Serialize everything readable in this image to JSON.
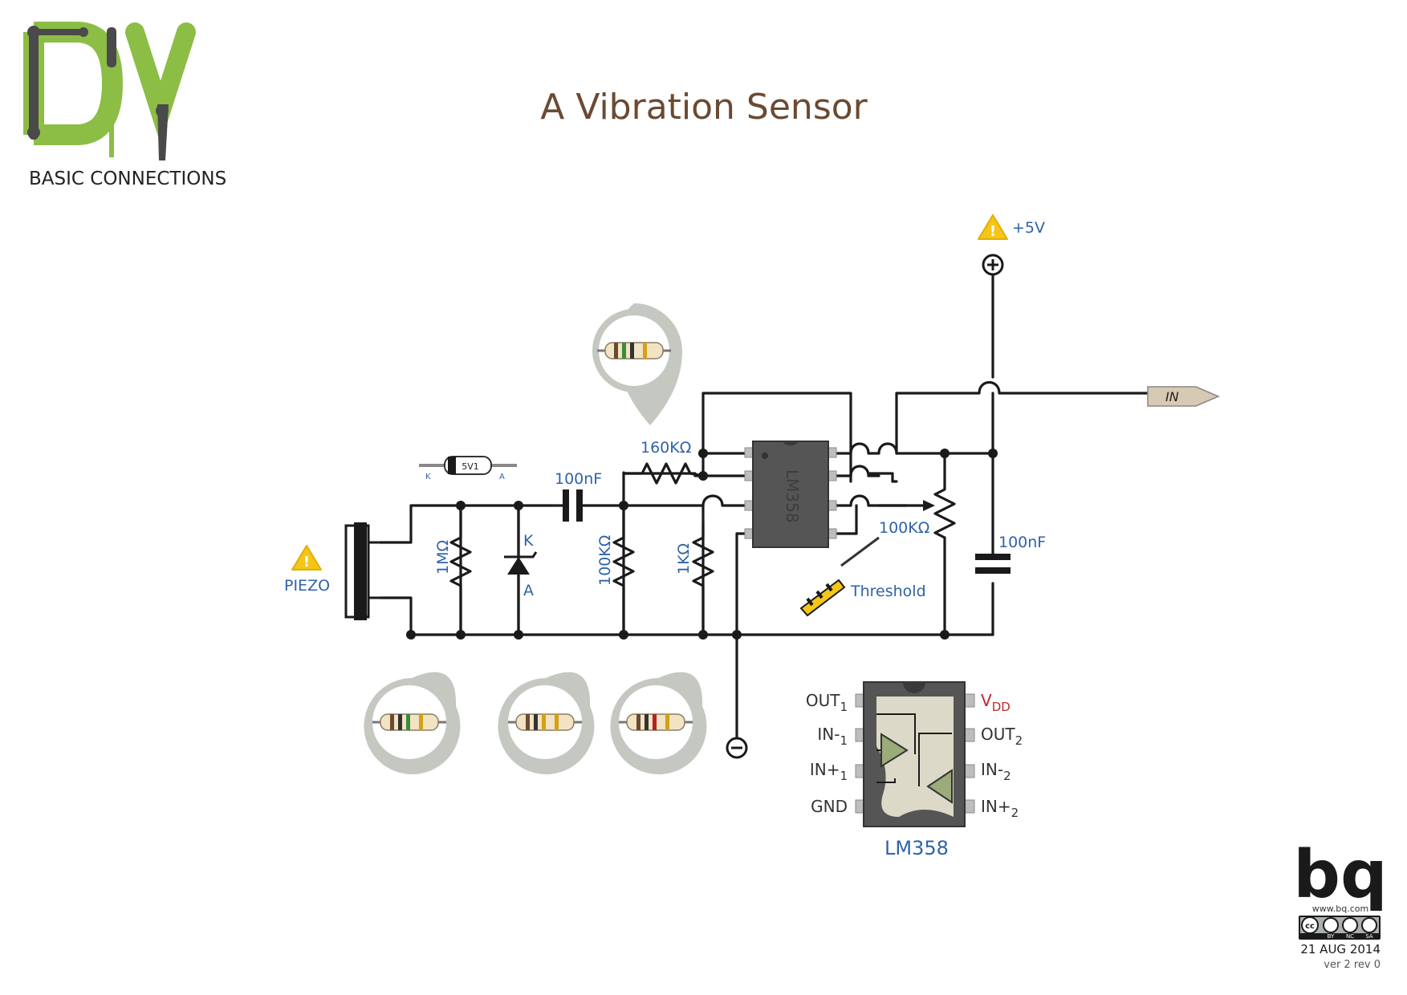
{
  "header": {
    "logo_text": "DIY",
    "subtitle": "BASIC CONNECTIONS",
    "title": "A Vibration Sensor"
  },
  "colors": {
    "logo_green": "#8cbd45",
    "logo_gray": "#4a4a4a",
    "title_brown": "#6b4a32",
    "label_blue": "#2f63a7",
    "vdd_red": "#c0272d",
    "warning_yellow": "#f5c518",
    "callout_gray": "#c4c8c1",
    "wire": "#1a1a1a"
  },
  "components": {
    "piezo_label": "PIEZO",
    "r1m": "1MΩ",
    "zener_body": "5V1",
    "zener_k": "K",
    "zener_a": "A",
    "cap_in": "100nF",
    "r100k": "100KΩ",
    "r1k": "1KΩ",
    "r160k": "160KΩ",
    "ic_body": "LM358",
    "pot": "100KΩ",
    "threshold": "Threshold",
    "cap_supply": "100nF",
    "supply": "+5V",
    "input_tag": "IN"
  },
  "pinout": {
    "chip_name": "LM358",
    "left_pins": [
      {
        "base": "OUT",
        "sub": "1"
      },
      {
        "base": "IN-",
        "sub": "1"
      },
      {
        "base": "IN+",
        "sub": "1"
      },
      {
        "base": "GND",
        "sub": ""
      }
    ],
    "right_pins": [
      {
        "base": "V",
        "sub": "DD"
      },
      {
        "base": "OUT",
        "sub": "2"
      },
      {
        "base": "IN-",
        "sub": "2"
      },
      {
        "base": "IN+",
        "sub": "2"
      }
    ]
  },
  "footer": {
    "brand": "bq",
    "url": "www.bq.com",
    "license_tags": [
      "BY",
      "NC",
      "SA"
    ],
    "license_cc": "cc",
    "date": "21 AUG 2014",
    "version": "ver 2 rev 0"
  }
}
